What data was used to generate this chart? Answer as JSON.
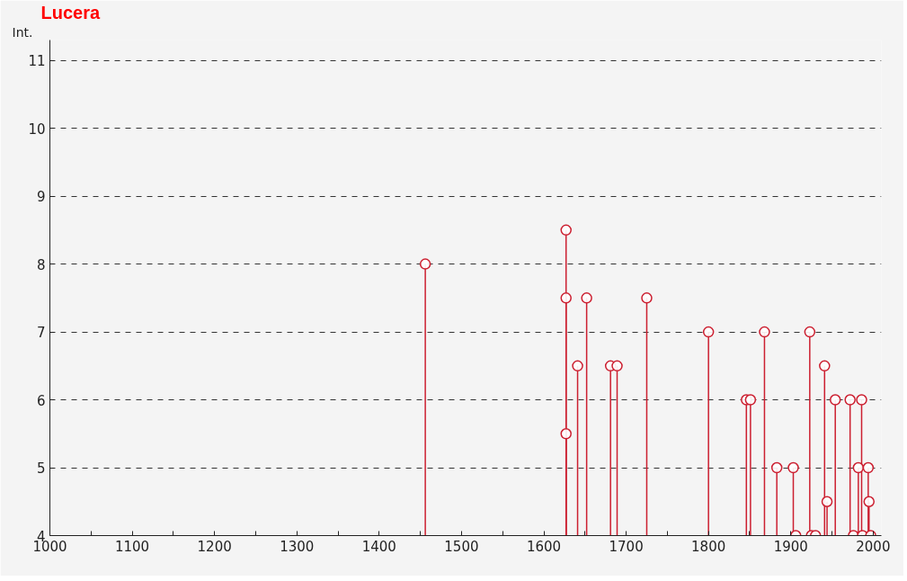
{
  "chart_data": {
    "type": "lollipop",
    "title": "Lucera",
    "ylabel": "Int.",
    "x": [
      1456,
      1627,
      1627,
      1627,
      1641,
      1652,
      1681,
      1689,
      1725,
      1800,
      1846,
      1851,
      1868,
      1883,
      1903,
      1906,
      1923,
      1925,
      1930,
      1941,
      1944,
      1954,
      1972,
      1976,
      1982,
      1986,
      1987,
      1994,
      1995,
      1997
    ],
    "series": [
      {
        "color": "#cc1f30",
        "values": [
          8,
          8.5,
          7.5,
          5.5,
          6.5,
          7.5,
          6.5,
          6.5,
          7.5,
          7,
          6,
          6,
          7,
          5,
          5,
          4,
          7,
          4,
          4,
          6.5,
          4.5,
          6,
          6,
          4,
          5,
          6,
          4,
          5,
          4.5,
          4
        ]
      }
    ],
    "xlim": [
      1000,
      2010
    ],
    "ylim": [
      4,
      11.3
    ],
    "xticks": [
      1000,
      {
        "value": 1050,
        "label": null
      },
      1100,
      {
        "value": 1150,
        "label": null
      },
      1200,
      {
        "value": 1250,
        "label": null
      },
      1300,
      {
        "value": 1350,
        "label": null
      },
      1400,
      {
        "value": 1450,
        "label": null
      },
      1500,
      {
        "value": 1550,
        "label": null
      },
      1600,
      {
        "value": 1650,
        "label": null
      },
      1700,
      {
        "value": 1750,
        "label": null
      },
      1800,
      {
        "value": 1850,
        "label": null
      },
      1900,
      {
        "value": 1950,
        "label": null
      },
      2000
    ],
    "yticks": [
      4,
      5,
      6,
      7,
      8,
      9,
      10,
      11
    ],
    "grid": "y",
    "marker": "circle"
  }
}
